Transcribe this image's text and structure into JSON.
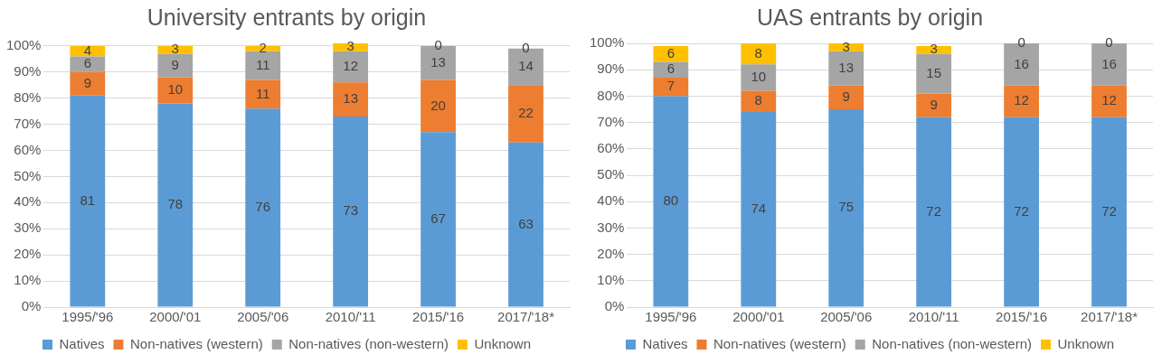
{
  "chart_data": [
    {
      "type": "bar",
      "title": "University entrants by origin",
      "stacked": true,
      "data_labels": true,
      "grid": "y",
      "legend": "bottom",
      "categories": [
        "1995/'96",
        "2000/'01",
        "2005/'06",
        "2010/'11",
        "2015/'16",
        "2017/'18*"
      ],
      "ylim": [
        0,
        101
      ],
      "yticks": [
        {
          "value": 0,
          "label": "0%"
        },
        {
          "value": 10,
          "label": "10%"
        },
        {
          "value": 20,
          "label": "20%"
        },
        {
          "value": 30,
          "label": "30%"
        },
        {
          "value": 40,
          "label": "40%"
        },
        {
          "value": 50,
          "label": "50%"
        },
        {
          "value": 60,
          "label": "60%"
        },
        {
          "value": 70,
          "label": "70%"
        },
        {
          "value": 80,
          "label": "80%"
        },
        {
          "value": 90,
          "label": "90%"
        },
        {
          "value": 100,
          "label": "100%"
        }
      ],
      "series": [
        {
          "name": "Natives",
          "color": "#5b9bd5",
          "values": [
            81,
            78,
            76,
            73,
            67,
            63
          ]
        },
        {
          "name": "Non-natives (western)",
          "color": "#ed7d31",
          "values": [
            9,
            10,
            11,
            13,
            20,
            22
          ]
        },
        {
          "name": "Non-natives (non-western)",
          "color": "#a5a5a5",
          "values": [
            6,
            9,
            11,
            12,
            13,
            14
          ]
        },
        {
          "name": "Unknown",
          "color": "#ffc000",
          "values": [
            4,
            3,
            2,
            3,
            0,
            0
          ]
        }
      ]
    },
    {
      "type": "bar",
      "title": "UAS entrants by origin",
      "stacked": true,
      "data_labels": true,
      "grid": "y",
      "legend": "bottom",
      "categories": [
        "1995/'96",
        "2000/'01",
        "2005/'06",
        "2010/'11",
        "2015/'16",
        "2017/'18*"
      ],
      "ylim": [
        0,
        100
      ],
      "yticks": [
        {
          "value": 0,
          "label": "0%"
        },
        {
          "value": 10,
          "label": "10%"
        },
        {
          "value": 20,
          "label": "20%"
        },
        {
          "value": 30,
          "label": "30%"
        },
        {
          "value": 40,
          "label": "40%"
        },
        {
          "value": 50,
          "label": "50%"
        },
        {
          "value": 60,
          "label": "60%"
        },
        {
          "value": 70,
          "label": "70%"
        },
        {
          "value": 80,
          "label": "80%"
        },
        {
          "value": 90,
          "label": "90%"
        },
        {
          "value": 100,
          "label": "100%"
        }
      ],
      "series": [
        {
          "name": "Natives",
          "color": "#5b9bd5",
          "values": [
            80,
            74,
            75,
            72,
            72,
            72
          ]
        },
        {
          "name": "Non-natives (western)",
          "color": "#ed7d31",
          "values": [
            7,
            8,
            9,
            9,
            12,
            12
          ]
        },
        {
          "name": "Non-natives (non-western)",
          "color": "#a5a5a5",
          "values": [
            6,
            10,
            13,
            15,
            16,
            16
          ]
        },
        {
          "name": "Unknown",
          "color": "#ffc000",
          "values": [
            6,
            8,
            3,
            3,
            0,
            0
          ]
        }
      ]
    }
  ]
}
